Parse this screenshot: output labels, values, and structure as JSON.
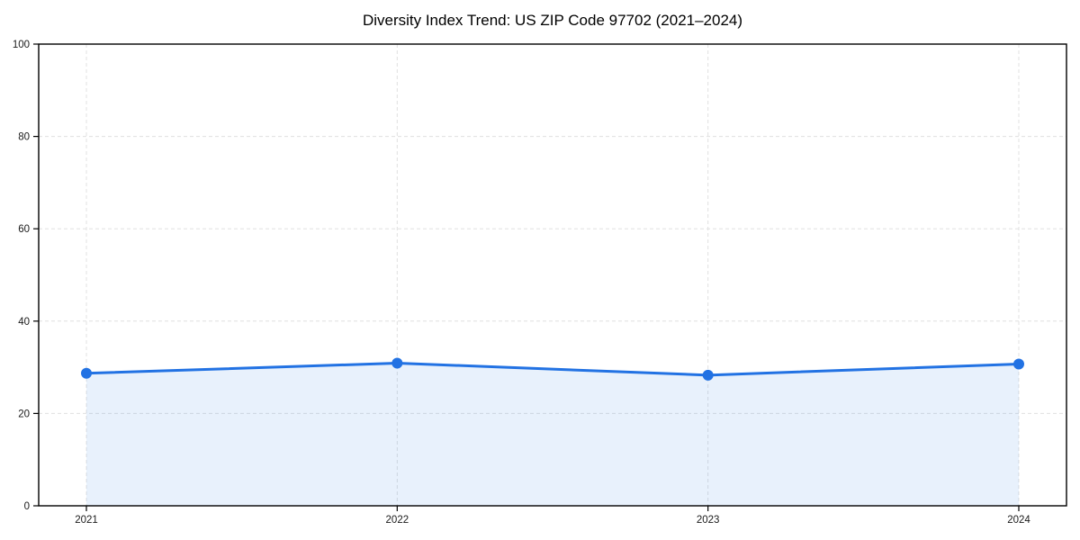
{
  "chart_data": {
    "type": "area",
    "title": "Diversity Index Trend: US ZIP Code 97702 (2021–2024)",
    "x": [
      2021,
      2022,
      2023,
      2024
    ],
    "x_tick_labels": [
      "2021",
      "2022",
      "2023",
      "2024"
    ],
    "series": [
      {
        "name": "Diversity Index",
        "values": [
          28.7,
          30.9,
          28.3,
          30.7
        ]
      }
    ],
    "xlabel": "",
    "ylabel": "",
    "ylim": [
      0,
      100
    ],
    "yticks": [
      0,
      20,
      40,
      60,
      80,
      100
    ],
    "grid": "dashed",
    "legend": "none",
    "colors": {
      "line": "#2272e3",
      "marker": "#2272e3",
      "area_fill": "#2272e3",
      "grid": "#e0e0e0",
      "spine": "#000000",
      "tick_label": "#1a1a1a",
      "title": "#000000",
      "background": "#ffffff"
    },
    "area_opacity": 0.1
  }
}
